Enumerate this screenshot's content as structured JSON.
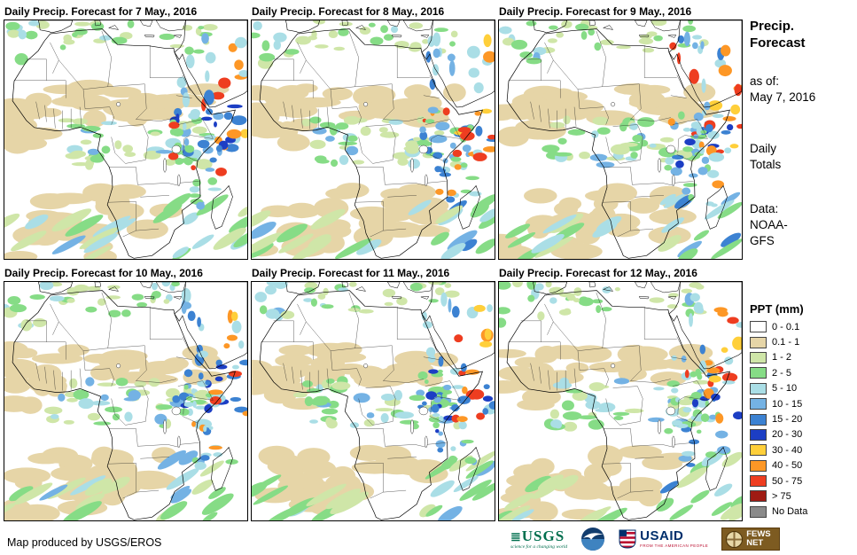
{
  "panels": [
    {
      "title": "Daily Precip. Forecast for 7 May., 2016"
    },
    {
      "title": "Daily Precip. Forecast for 8 May., 2016"
    },
    {
      "title": "Daily Precip. Forecast for 9 May., 2016"
    },
    {
      "title": "Daily Precip. Forecast for 10 May., 2016"
    },
    {
      "title": "Daily Precip. Forecast for 11 May., 2016"
    },
    {
      "title": "Daily Precip. Forecast for 12 May., 2016"
    }
  ],
  "sidebar": {
    "title_line1": "Precip.",
    "title_line2": "Forecast",
    "as_of_label": "as of:",
    "as_of_date": "May 7, 2016",
    "totals_line1": "Daily",
    "totals_line2": "Totals",
    "data_label": "Data:",
    "data_source_line1": "NOAA-",
    "data_source_line2": "GFS",
    "legend_title": "PPT (mm)",
    "legend": [
      {
        "label": "0 - 0.1",
        "color": "#ffffff"
      },
      {
        "label": "0.1 - 1",
        "color": "#e6d5a7"
      },
      {
        "label": "1 - 2",
        "color": "#cfe6a8"
      },
      {
        "label": "2 - 5",
        "color": "#86dc86"
      },
      {
        "label": "5 - 10",
        "color": "#aadee6"
      },
      {
        "label": "10 - 15",
        "color": "#74b2e4"
      },
      {
        "label": "15 - 20",
        "color": "#3c82d2"
      },
      {
        "label": "20 - 30",
        "color": "#1c3ec4"
      },
      {
        "label": "30 - 40",
        "color": "#ffcf3a"
      },
      {
        "label": "40 - 50",
        "color": "#fd9726"
      },
      {
        "label": "50 - 75",
        "color": "#ee3d20"
      },
      {
        "label": "> 75",
        "color": "#9f1b13"
      },
      {
        "label": "No Data",
        "color": "#8a8a8a"
      }
    ]
  },
  "footer": {
    "attribution": "Map produced by USGS/EROS",
    "usgs_name": "USGS",
    "usgs_tagline": "science for a changing world",
    "noaa_icon": "noaa-emblem",
    "usaid_name": "USAID",
    "usaid_tagline": "FROM THE AMERICAN PEOPLE",
    "usaid_icon": "usaid-flag-shield",
    "fews_name": "FEWS NET",
    "fews_icon": "fews-globe"
  }
}
